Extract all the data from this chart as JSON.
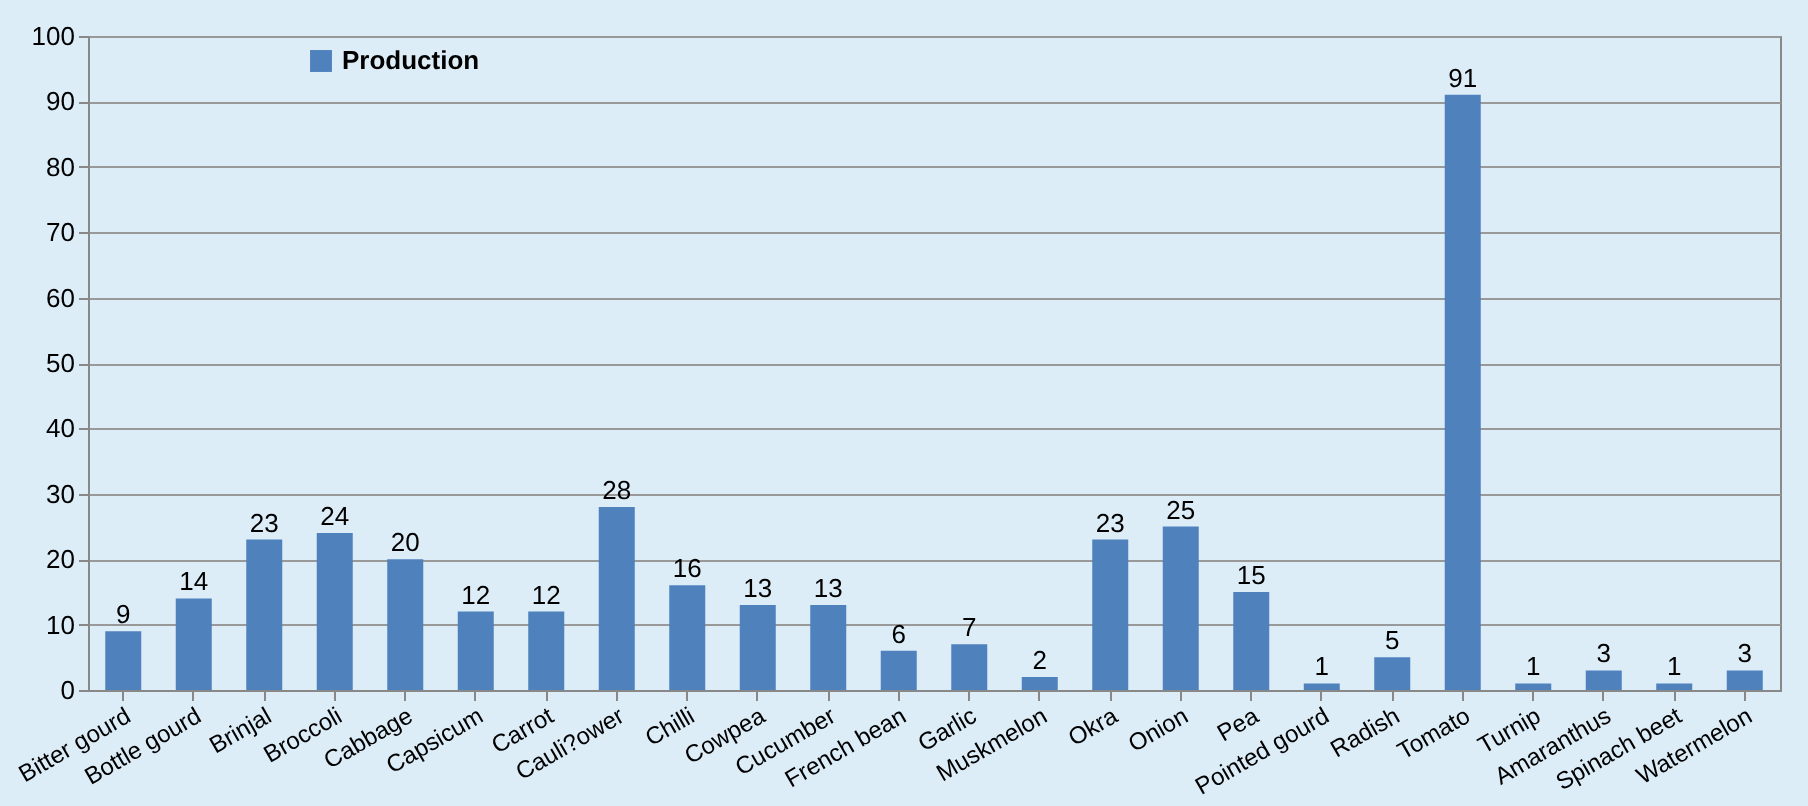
{
  "chart_data": {
    "type": "bar",
    "categories": [
      "Bitter gourd",
      "Bottle gourd",
      "Brinjal",
      "Broccoli",
      "Cabbage",
      "Capsicum",
      "Carrot",
      "Cauli?ower",
      "Chilli",
      "Cowpea",
      "Cucumber",
      "French bean",
      "Garlic",
      "Muskmelon",
      "Okra",
      "Onion",
      "Pea",
      "Pointed gourd",
      "Radish",
      "Tomato",
      "Turnip",
      "Amaranthus",
      "Spinach beet",
      "Watermelon"
    ],
    "series": [
      {
        "name": "Production",
        "color": "#4f81bd",
        "values": [
          9,
          14,
          23,
          24,
          20,
          12,
          12,
          28,
          16,
          13,
          13,
          6,
          7,
          2,
          23,
          25,
          15,
          1,
          5,
          91,
          1,
          3,
          1,
          3
        ]
      }
    ],
    "ylim": [
      0,
      100
    ],
    "yticks": [
      0,
      10,
      20,
      30,
      40,
      50,
      60,
      70,
      80,
      90,
      100
    ],
    "grid": "y",
    "legend": "top left",
    "data_labels": true
  }
}
